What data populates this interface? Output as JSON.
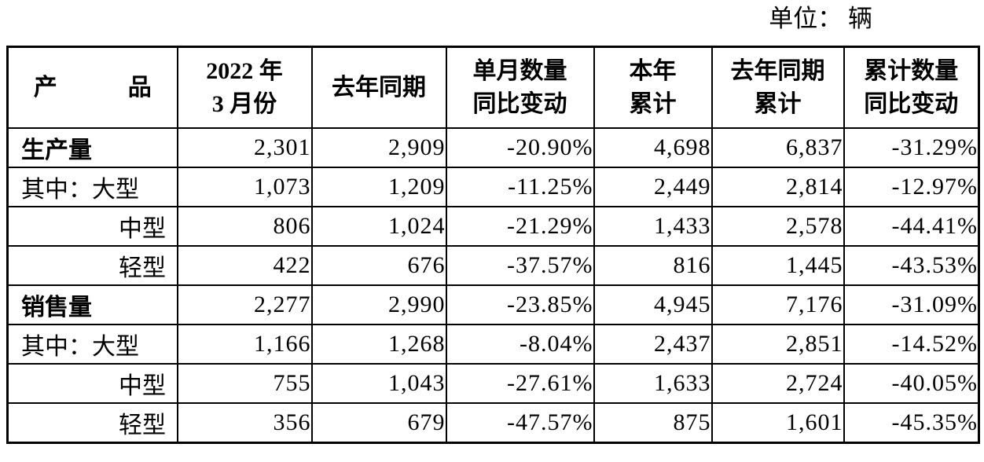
{
  "unit_label": "单位： 辆",
  "table": {
    "headers": [
      "产　　　品",
      "2022 年\n3 月份",
      "去年同期",
      "单月数量\n同比变动",
      "本年\n累计",
      "去年同期\n累计",
      "累计数量\n同比变动"
    ],
    "rows": [
      {
        "label": "生产量",
        "style": "section",
        "values": [
          "2,301",
          "2,909",
          "-20.90%",
          "4,698",
          "6,837",
          "-31.29%"
        ]
      },
      {
        "label": "其中：大型",
        "style": "sub-first",
        "values": [
          "1,073",
          "1,209",
          "-11.25%",
          "2,449",
          "2,814",
          "-12.97%"
        ]
      },
      {
        "label": "中型",
        "style": "sub",
        "values": [
          "806",
          "1,024",
          "-21.29%",
          "1,433",
          "2,578",
          "-44.41%"
        ]
      },
      {
        "label": "轻型",
        "style": "sub",
        "values": [
          "422",
          "676",
          "-37.57%",
          "816",
          "1,445",
          "-43.53%"
        ]
      },
      {
        "label": "销售量",
        "style": "section",
        "values": [
          "2,277",
          "2,990",
          "-23.85%",
          "4,945",
          "7,176",
          "-31.09%"
        ]
      },
      {
        "label": "其中：大型",
        "style": "sub-first",
        "values": [
          "1,166",
          "1,268",
          "-8.04%",
          "2,437",
          "2,851",
          "-14.52%"
        ]
      },
      {
        "label": "中型",
        "style": "sub",
        "values": [
          "755",
          "1,043",
          "-27.61%",
          "1,633",
          "2,724",
          "-40.05%"
        ]
      },
      {
        "label": "轻型",
        "style": "sub",
        "values": [
          "356",
          "679",
          "-47.57%",
          "875",
          "1,601",
          "-45.35%"
        ]
      }
    ]
  }
}
